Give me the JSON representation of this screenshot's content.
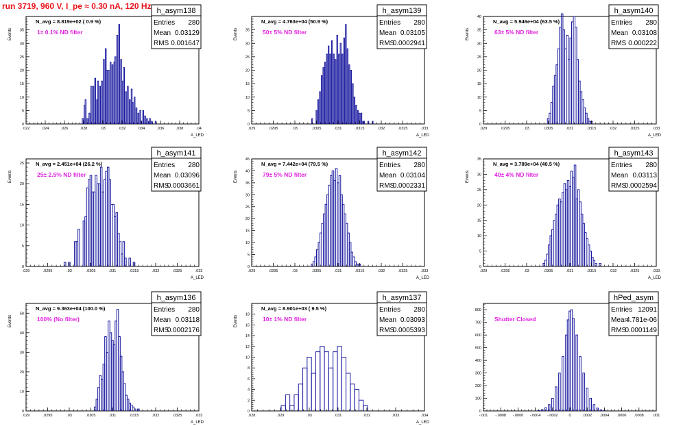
{
  "header": {
    "run_title": "run 3719,   960 V, I_pe ≈ 0.30 nA, 120 Hz"
  },
  "chart_data": [
    {
      "type": "bar",
      "title": "h_asym138",
      "nav": "N_avg = 8.819e+02 ( 0.9 %)",
      "filter": "1± 0.1% ND filter",
      "stats": {
        "entries": "280",
        "mean": "0.03129",
        "rms": "0.001647"
      },
      "xlabel": "A_LED",
      "ylabel": "Events",
      "xlim": [
        0.022,
        0.04
      ],
      "ylim": [
        0,
        40
      ],
      "xticks": [
        0.022,
        0.024,
        0.026,
        0.028,
        0.03,
        0.032,
        0.034,
        0.036,
        0.038,
        0.04
      ],
      "yticks": [
        0,
        5,
        10,
        15,
        20,
        25,
        30,
        35
      ],
      "bins": [
        [
          0.0279,
          2
        ],
        [
          0.0281,
          7
        ],
        [
          0.0282,
          9
        ],
        [
          0.0284,
          2
        ],
        [
          0.0286,
          4
        ],
        [
          0.0288,
          14
        ],
        [
          0.029,
          14
        ],
        [
          0.0292,
          17
        ],
        [
          0.0294,
          9
        ],
        [
          0.0295,
          16
        ],
        [
          0.0297,
          14
        ],
        [
          0.0299,
          16
        ],
        [
          0.0301,
          24
        ],
        [
          0.0303,
          28
        ],
        [
          0.0304,
          20
        ],
        [
          0.0306,
          20
        ],
        [
          0.0308,
          23
        ],
        [
          0.031,
          22
        ],
        [
          0.0312,
          23
        ],
        [
          0.0313,
          25
        ],
        [
          0.0315,
          33
        ],
        [
          0.0317,
          37
        ],
        [
          0.0319,
          24
        ],
        [
          0.0321,
          16
        ],
        [
          0.0322,
          21
        ],
        [
          0.0324,
          12
        ],
        [
          0.0326,
          14
        ],
        [
          0.0328,
          9
        ],
        [
          0.033,
          13
        ],
        [
          0.0331,
          8
        ],
        [
          0.0333,
          10
        ],
        [
          0.0335,
          6
        ],
        [
          0.0337,
          4
        ],
        [
          0.0339,
          5
        ],
        [
          0.034,
          1
        ],
        [
          0.0342,
          5
        ],
        [
          0.0344,
          3
        ],
        [
          0.0346,
          2
        ],
        [
          0.0348,
          1
        ],
        [
          0.0349,
          2
        ],
        [
          0.0351,
          1
        ],
        [
          0.0355,
          1
        ]
      ]
    },
    {
      "type": "bar",
      "title": "h_asym139",
      "nav": "N_avg = 4.763e+04 (50.9 %)",
      "filter": "50± 5% ND filter",
      "stats": {
        "entries": "280",
        "mean": "0.03105",
        "rms": "0.0002941"
      },
      "xlabel": "A_LED",
      "ylabel": "Events",
      "xlim": [
        0.029,
        0.033
      ],
      "ylim": [
        0,
        40
      ],
      "xticks": [
        0.029,
        0.0295,
        0.03,
        0.0305,
        0.031,
        0.0315,
        0.032,
        0.0325,
        0.033
      ],
      "yticks": [
        0,
        5,
        10,
        15,
        20,
        25,
        30,
        35
      ],
      "bins": [
        [
          0.0304,
          2
        ],
        [
          0.0305,
          5
        ],
        [
          0.03054,
          9
        ],
        [
          0.03058,
          12
        ],
        [
          0.03062,
          18
        ],
        [
          0.03066,
          21
        ],
        [
          0.0307,
          23
        ],
        [
          0.03074,
          26
        ],
        [
          0.03078,
          29
        ],
        [
          0.03082,
          26
        ],
        [
          0.03086,
          31
        ],
        [
          0.0309,
          26
        ],
        [
          0.03094,
          24
        ],
        [
          0.03098,
          33
        ],
        [
          0.03102,
          26
        ],
        [
          0.03106,
          30
        ],
        [
          0.0311,
          26
        ],
        [
          0.03114,
          32
        ],
        [
          0.03118,
          37
        ],
        [
          0.03122,
          28
        ],
        [
          0.03126,
          22
        ],
        [
          0.0313,
          20
        ],
        [
          0.03134,
          15
        ],
        [
          0.03138,
          10
        ],
        [
          0.03142,
          7
        ],
        [
          0.03146,
          5
        ],
        [
          0.0315,
          4
        ],
        [
          0.03154,
          4
        ],
        [
          0.03158,
          1
        ],
        [
          0.0316,
          1
        ],
        [
          0.0317,
          1
        ],
        [
          0.0318,
          1
        ]
      ]
    },
    {
      "type": "bar",
      "title": "h_asym140",
      "nav": "N_avg = 5.946e+04 (63.5 %)",
      "filter": "63± 5% ND filter",
      "stats": {
        "entries": "280",
        "mean": "0.03108",
        "rms": "0.000222"
      },
      "xlabel": "A_LED",
      "ylabel": "Events",
      "xlim": [
        0.029,
        0.033
      ],
      "ylim": [
        0,
        40
      ],
      "xticks": [
        0.029,
        0.0295,
        0.03,
        0.0305,
        0.031,
        0.0315,
        0.032,
        0.0325,
        0.033
      ],
      "yticks": [
        0,
        5,
        10,
        15,
        20,
        25,
        30,
        35,
        40
      ],
      "bins": [
        [
          0.0305,
          2
        ],
        [
          0.03054,
          4
        ],
        [
          0.03058,
          8
        ],
        [
          0.03062,
          14
        ],
        [
          0.03066,
          18
        ],
        [
          0.0307,
          22
        ],
        [
          0.03074,
          28
        ],
        [
          0.03078,
          36
        ],
        [
          0.03082,
          41
        ],
        [
          0.03086,
          35
        ],
        [
          0.0309,
          28
        ],
        [
          0.03094,
          33
        ],
        [
          0.03098,
          24
        ],
        [
          0.03102,
          32
        ],
        [
          0.03106,
          38
        ],
        [
          0.0311,
          40
        ],
        [
          0.03114,
          36
        ],
        [
          0.03118,
          24
        ],
        [
          0.03122,
          16
        ],
        [
          0.03126,
          12
        ],
        [
          0.0313,
          9
        ],
        [
          0.03134,
          6
        ],
        [
          0.03138,
          4
        ],
        [
          0.03142,
          2
        ],
        [
          0.03146,
          1
        ],
        [
          0.0315,
          1
        ]
      ]
    },
    {
      "type": "bar",
      "title": "h_asym141",
      "nav": "N_avg = 2.451e+04 (26.2 %)",
      "filter": "25± 2.5% ND filter",
      "stats": {
        "entries": "280",
        "mean": "0.03096",
        "rms": "0.0003661"
      },
      "xlabel": "A_LED",
      "ylabel": "Events",
      "xlim": [
        0.029,
        0.033
      ],
      "ylim": [
        0,
        26
      ],
      "xticks": [
        0.029,
        0.0295,
        0.03,
        0.0305,
        0.031,
        0.0315,
        0.032,
        0.0325,
        0.033
      ],
      "yticks": [
        0,
        5,
        10,
        15,
        20,
        25
      ],
      "bins": [
        [
          0.0299,
          1
        ],
        [
          0.03,
          1
        ],
        [
          0.03014,
          6
        ],
        [
          0.03018,
          6
        ],
        [
          0.03022,
          9
        ],
        [
          0.03034,
          11
        ],
        [
          0.03038,
          12
        ],
        [
          0.03042,
          19
        ],
        [
          0.03046,
          21
        ],
        [
          0.0305,
          22
        ],
        [
          0.03054,
          18
        ],
        [
          0.03058,
          18
        ],
        [
          0.03062,
          22
        ],
        [
          0.03066,
          20
        ],
        [
          0.0307,
          20
        ],
        [
          0.03074,
          24
        ],
        [
          0.03078,
          18
        ],
        [
          0.03082,
          21
        ],
        [
          0.03086,
          23
        ],
        [
          0.0309,
          24
        ],
        [
          0.03094,
          21
        ],
        [
          0.03098,
          15
        ],
        [
          0.03102,
          15
        ],
        [
          0.03106,
          12
        ],
        [
          0.0311,
          13
        ],
        [
          0.03114,
          8
        ],
        [
          0.03118,
          6
        ],
        [
          0.03122,
          3
        ],
        [
          0.03126,
          6
        ],
        [
          0.0313,
          2
        ],
        [
          0.0314,
          2
        ],
        [
          0.0315,
          1
        ]
      ]
    },
    {
      "type": "bar",
      "title": "h_asym142",
      "nav": "N_avg = 7.442e+04 (79.5 %)",
      "filter": "79± 5% ND filter",
      "stats": {
        "entries": "280",
        "mean": "0.03104",
        "rms": "0.0002331"
      },
      "xlabel": "A_LED",
      "ylabel": "Events",
      "xlim": [
        0.029,
        0.033
      ],
      "ylim": [
        0,
        45
      ],
      "xticks": [
        0.029,
        0.0295,
        0.03,
        0.0305,
        0.031,
        0.0315,
        0.032,
        0.0325,
        0.033
      ],
      "yticks": [
        0,
        5,
        10,
        15,
        20,
        25,
        30,
        35,
        40,
        45
      ],
      "bins": [
        [
          0.0304,
          1
        ],
        [
          0.03044,
          2
        ],
        [
          0.03048,
          4
        ],
        [
          0.03052,
          7
        ],
        [
          0.03056,
          10
        ],
        [
          0.0306,
          14
        ],
        [
          0.03064,
          18
        ],
        [
          0.03068,
          22
        ],
        [
          0.03072,
          26
        ],
        [
          0.03076,
          30
        ],
        [
          0.0308,
          34
        ],
        [
          0.03084,
          38
        ],
        [
          0.03088,
          40
        ],
        [
          0.03092,
          36
        ],
        [
          0.03096,
          41
        ],
        [
          0.031,
          35
        ],
        [
          0.03104,
          38
        ],
        [
          0.03108,
          30
        ],
        [
          0.03112,
          26
        ],
        [
          0.03116,
          22
        ],
        [
          0.0312,
          18
        ],
        [
          0.03124,
          14
        ],
        [
          0.03128,
          10
        ],
        [
          0.03132,
          6
        ],
        [
          0.03136,
          4
        ],
        [
          0.0314,
          2
        ],
        [
          0.03144,
          1
        ],
        [
          0.0315,
          1
        ]
      ]
    },
    {
      "type": "bar",
      "title": "h_asym143",
      "nav": "N_avg = 3.789e+04 (40.5 %)",
      "filter": "40± 4% ND filter",
      "stats": {
        "entries": "280",
        "mean": "0.03113",
        "rms": "0.0002594"
      },
      "xlabel": "A_LED",
      "ylabel": "Events",
      "xlim": [
        0.029,
        0.033
      ],
      "ylim": [
        0,
        35
      ],
      "xticks": [
        0.029,
        0.0295,
        0.03,
        0.0305,
        0.031,
        0.0315,
        0.032,
        0.0325,
        0.033
      ],
      "yticks": [
        0,
        5,
        10,
        15,
        20,
        25,
        30,
        35
      ],
      "bins": [
        [
          0.0304,
          1
        ],
        [
          0.03044,
          2
        ],
        [
          0.03048,
          4
        ],
        [
          0.03052,
          7
        ],
        [
          0.03056,
          10
        ],
        [
          0.0306,
          12
        ],
        [
          0.03064,
          15
        ],
        [
          0.03068,
          17
        ],
        [
          0.03072,
          20
        ],
        [
          0.03076,
          22
        ],
        [
          0.0308,
          21
        ],
        [
          0.03084,
          24
        ],
        [
          0.03088,
          27
        ],
        [
          0.03092,
          25
        ],
        [
          0.03096,
          28
        ],
        [
          0.031,
          26
        ],
        [
          0.03104,
          31
        ],
        [
          0.03108,
          29
        ],
        [
          0.03112,
          33
        ],
        [
          0.03116,
          22
        ],
        [
          0.0312,
          25
        ],
        [
          0.03124,
          21
        ],
        [
          0.03128,
          17
        ],
        [
          0.03132,
          14
        ],
        [
          0.03136,
          11
        ],
        [
          0.0314,
          9
        ],
        [
          0.03144,
          7
        ],
        [
          0.03148,
          5
        ],
        [
          0.03152,
          3
        ],
        [
          0.03156,
          2
        ],
        [
          0.0316,
          1
        ],
        [
          0.0317,
          1
        ]
      ]
    },
    {
      "type": "bar",
      "title": "h_asym136",
      "nav": "N_avg = 9.363e+04 (100.0 %)",
      "filter": "100% (No filter)",
      "stats": {
        "entries": "280",
        "mean": "0.03118",
        "rms": "0.0002176"
      },
      "xlabel": "A_LED",
      "ylabel": "Events",
      "xlim": [
        0.029,
        0.033
      ],
      "ylim": [
        0,
        55
      ],
      "xticks": [
        0.029,
        0.0295,
        0.03,
        0.0305,
        0.031,
        0.0315,
        0.032,
        0.0325,
        0.033
      ],
      "yticks": [
        0,
        10,
        20,
        30,
        40,
        50
      ],
      "bins": [
        [
          0.0306,
          2
        ],
        [
          0.03064,
          6
        ],
        [
          0.03068,
          12
        ],
        [
          0.03072,
          18
        ],
        [
          0.03076,
          16
        ],
        [
          0.0308,
          24
        ],
        [
          0.03084,
          38
        ],
        [
          0.03088,
          30
        ],
        [
          0.03092,
          46
        ],
        [
          0.03096,
          40
        ],
        [
          0.031,
          36
        ],
        [
          0.03104,
          34
        ],
        [
          0.03108,
          46
        ],
        [
          0.03112,
          52
        ],
        [
          0.03116,
          38
        ],
        [
          0.0312,
          28
        ],
        [
          0.03124,
          20
        ],
        [
          0.03128,
          14
        ],
        [
          0.03132,
          8
        ],
        [
          0.03136,
          6
        ],
        [
          0.0314,
          4
        ],
        [
          0.03144,
          3
        ],
        [
          0.03148,
          2
        ],
        [
          0.03152,
          1
        ],
        [
          0.0316,
          1
        ]
      ]
    },
    {
      "type": "bar",
      "title": "h_asym137",
      "nav": "N_avg = 8.901e+03 ( 9.5 %)",
      "filter": "10± 1% ND filter",
      "stats": {
        "entries": "280",
        "mean": "0.03093",
        "rms": "0.0005393"
      },
      "xlabel": "A_LED",
      "ylabel": "Events",
      "xlim": [
        0.028,
        0.034
      ],
      "ylim": [
        0,
        20
      ],
      "xticks": [
        0.028,
        0.029,
        0.03,
        0.031,
        0.032,
        0.033,
        0.034
      ],
      "yticks": [
        0,
        2,
        4,
        6,
        8,
        10,
        12,
        14,
        16,
        18
      ],
      "bins": [
        [
          0.0291,
          1
        ],
        [
          0.02925,
          3
        ],
        [
          0.0294,
          1
        ],
        [
          0.02955,
          3
        ],
        [
          0.0297,
          5
        ],
        [
          0.02985,
          8
        ],
        [
          0.03,
          10
        ],
        [
          0.03015,
          7
        ],
        [
          0.0303,
          11
        ],
        [
          0.03045,
          12
        ],
        [
          0.0306,
          11
        ],
        [
          0.03075,
          8
        ],
        [
          0.0309,
          11
        ],
        [
          0.03105,
          12
        ],
        [
          0.0312,
          10
        ],
        [
          0.03135,
          7
        ],
        [
          0.0315,
          5
        ],
        [
          0.03165,
          4
        ],
        [
          0.0318,
          2
        ],
        [
          0.03195,
          1
        ]
      ]
    },
    {
      "type": "bar",
      "title": "hPed_asym",
      "nav": "",
      "filter": "Shutter Closed",
      "stats": {
        "entries": "12091",
        "mean": "4.781e-06",
        "rms": "0.0001149"
      },
      "xlabel": "",
      "ylabel": "",
      "xlim": [
        -0.001,
        0.001
      ],
      "ylim": [
        0,
        850
      ],
      "xticks": [
        -0.001,
        -0.0008,
        -0.0006,
        -0.0004,
        -0.0002,
        0,
        0.0002,
        0.0004,
        0.0006,
        0.0008,
        0.001
      ],
      "yticks": [
        0,
        100,
        200,
        300,
        400,
        500,
        600,
        700,
        800
      ],
      "bins": [
        [
          -0.00036,
          3
        ],
        [
          -0.00032,
          10
        ],
        [
          -0.00028,
          25
        ],
        [
          -0.00024,
          50
        ],
        [
          -0.0002,
          100
        ],
        [
          -0.00016,
          190
        ],
        [
          -0.00012,
          300
        ],
        [
          -8e-05,
          430
        ],
        [
          -4e-05,
          600
        ],
        [
          -2e-05,
          720
        ],
        [
          0,
          790
        ],
        [
          2e-05,
          800
        ],
        [
          4e-05,
          730
        ],
        [
          8e-05,
          600
        ],
        [
          0.00012,
          430
        ],
        [
          0.00016,
          300
        ],
        [
          0.0002,
          180
        ],
        [
          0.00024,
          100
        ],
        [
          0.00028,
          50
        ],
        [
          0.00032,
          22
        ],
        [
          0.00036,
          8
        ],
        [
          0.0004,
          2
        ]
      ]
    }
  ]
}
